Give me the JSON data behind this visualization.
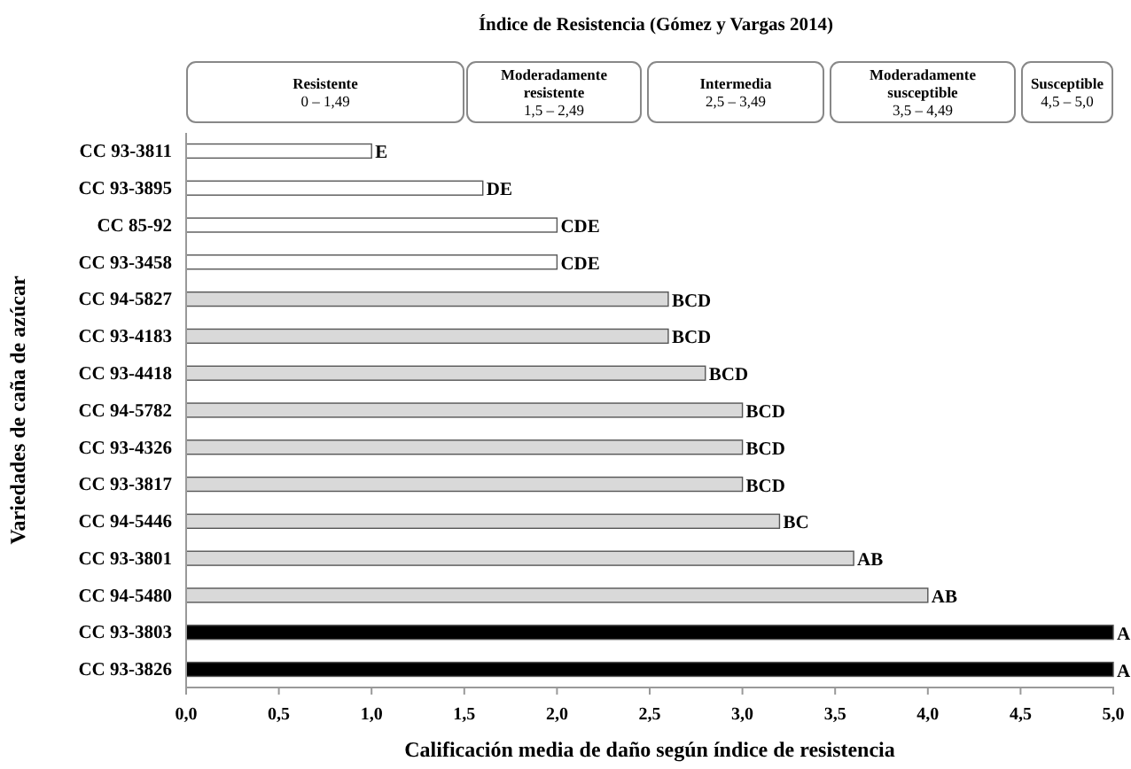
{
  "chart_data": {
    "type": "bar",
    "orientation": "horizontal",
    "title": "Índice de Resistencia (Gómez y Vargas 2014)",
    "xlabel": "Calificación media de daño según índice de resistencia",
    "ylabel": "Variedades de caña de azúcar",
    "categories": [
      "CC 93-3811",
      "CC 93-3895",
      "CC 85-92",
      "CC 93-3458",
      "CC 94-5827",
      "CC 93-4183",
      "CC 93-4418",
      "CC 94-5782",
      "CC 93-4326",
      "CC 93-3817",
      "CC 94-5446",
      "CC 93-3801",
      "CC 94-5480",
      "CC 93-3803",
      "CC 93-3826"
    ],
    "values": [
      1.0,
      1.6,
      2.0,
      2.0,
      2.6,
      2.6,
      2.8,
      3.0,
      3.0,
      3.0,
      3.2,
      3.6,
      4.0,
      5.0,
      5.0
    ],
    "value_labels": [
      "E",
      "DE",
      "CDE",
      "CDE",
      "BCD",
      "BCD",
      "BCD",
      "BCD",
      "BCD",
      "BCD",
      "BC",
      "AB",
      "AB",
      "A",
      "A"
    ],
    "colors": [
      "#ffffff",
      "#ffffff",
      "#ffffff",
      "#ffffff",
      "#d9d9d9",
      "#d9d9d9",
      "#d9d9d9",
      "#d9d9d9",
      "#d9d9d9",
      "#d9d9d9",
      "#d9d9d9",
      "#d9d9d9",
      "#d9d9d9",
      "#000000",
      "#000000"
    ],
    "xlim": [
      0,
      5
    ],
    "xticks": [
      {
        "value": 0,
        "label": "0,0"
      },
      {
        "value": 0.5,
        "label": "0,5"
      },
      {
        "value": 1,
        "label": "1,0"
      },
      {
        "value": 1.5,
        "label": "1,5"
      },
      {
        "value": 2,
        "label": "2,0"
      },
      {
        "value": 2.5,
        "label": "2,5"
      },
      {
        "value": 3,
        "label": "3,0"
      },
      {
        "value": 3.5,
        "label": "3,5"
      },
      {
        "value": 4,
        "label": "4,0"
      },
      {
        "value": 4.5,
        "label": "4,5"
      },
      {
        "value": 5,
        "label": "5,0"
      }
    ],
    "annotations": [
      "Resistente\n0 – 1,49",
      "Moderadamente\nresistente\n1,5 – 2,49",
      "Intermedia\n2,5 – 3,49",
      "Moderadamente\nsusceptible\n3,5 – 4,49",
      "Susceptible\n4,5 – 5,0"
    ],
    "grid": false
  }
}
